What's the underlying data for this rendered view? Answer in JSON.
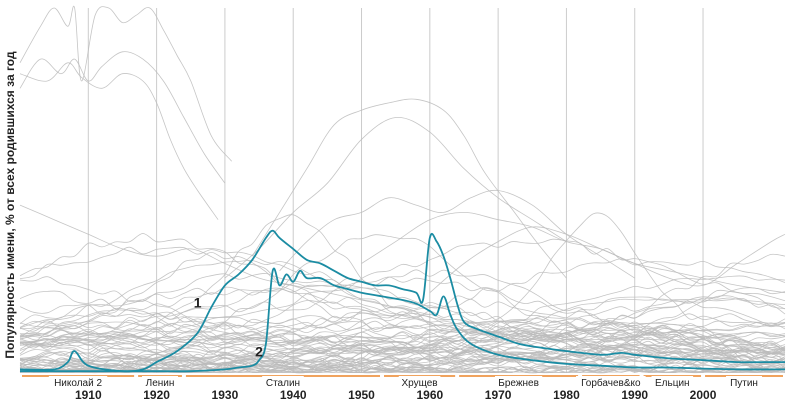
{
  "chart_data": {
    "type": "line",
    "ylabel": "Популярность имени, % от всех родившихся за год",
    "xlim": [
      1900,
      2012
    ],
    "ylim": [
      0,
      10
    ],
    "x_ticks": [
      1910,
      1920,
      1930,
      1940,
      1950,
      1960,
      1970,
      1980,
      1990,
      2000
    ],
    "eras": [
      {
        "label": "Николай 2",
        "start": 1900,
        "end": 1917
      },
      {
        "label": "Ленин",
        "start": 1917,
        "end": 1924
      },
      {
        "label": "Сталин",
        "start": 1924,
        "end": 1953
      },
      {
        "label": "Хрущев",
        "start": 1953,
        "end": 1964
      },
      {
        "label": "Брежнев",
        "start": 1964,
        "end": 1982
      },
      {
        "label": "Горбачев&ко",
        "start": 1982,
        "end": 1991
      },
      {
        "label": "Ельцин",
        "start": 1991,
        "end": 2000
      },
      {
        "label": "Путин",
        "start": 2000,
        "end": 2012
      }
    ],
    "era_bar_color": "#f0a35e",
    "highlight_color": "#1b8ca3",
    "background_color": "#bbbbbb",
    "highlighted_series": [
      {
        "name": "1",
        "label_at": [
          1926,
          1.8
        ],
        "x": [
          1900,
          1905,
          1907,
          1908,
          1910,
          1915,
          1918,
          1920,
          1923,
          1926,
          1928,
          1930,
          1932,
          1934,
          1936,
          1937,
          1938,
          1940,
          1942,
          1944,
          1946,
          1948,
          1950,
          1952,
          1954,
          1956,
          1958,
          1959,
          1960,
          1961,
          1962,
          1963,
          1964,
          1965,
          1967,
          1970,
          1973,
          1976,
          1980,
          1985,
          1988,
          1990,
          1995,
          2000,
          2005,
          2010,
          2012
        ],
        "y": [
          0.1,
          0.1,
          0.3,
          0.6,
          0.2,
          0.05,
          0.1,
          0.3,
          0.6,
          1.1,
          1.8,
          2.4,
          2.7,
          3.1,
          3.7,
          3.9,
          3.7,
          3.4,
          3.1,
          3.0,
          2.8,
          2.6,
          2.5,
          2.4,
          2.4,
          2.3,
          2.2,
          2.0,
          3.7,
          3.6,
          3.2,
          2.6,
          1.9,
          1.4,
          1.2,
          1.0,
          0.8,
          0.7,
          0.6,
          0.5,
          0.55,
          0.5,
          0.4,
          0.35,
          0.3,
          0.3,
          0.3
        ]
      },
      {
        "name": "2",
        "label_at": [
          1935,
          0.45
        ],
        "x": [
          1900,
          1910,
          1920,
          1925,
          1930,
          1932,
          1934,
          1935,
          1936,
          1937,
          1938,
          1939,
          1940,
          1941,
          1942,
          1944,
          1946,
          1948,
          1950,
          1953,
          1956,
          1958,
          1960,
          1961,
          1962,
          1963,
          1964,
          1966,
          1970,
          1975,
          1980,
          1985,
          1990,
          1995,
          2000,
          2005,
          2010,
          2012
        ],
        "y": [
          0.05,
          0.05,
          0.05,
          0.05,
          0.1,
          0.15,
          0.2,
          0.35,
          0.8,
          2.8,
          2.4,
          2.7,
          2.5,
          2.8,
          2.6,
          2.6,
          2.4,
          2.3,
          2.2,
          2.1,
          2.0,
          1.9,
          1.7,
          1.6,
          2.1,
          1.6,
          1.2,
          0.8,
          0.5,
          0.35,
          0.25,
          0.2,
          0.15,
          0.15,
          0.12,
          0.1,
          0.1,
          0.1
        ]
      }
    ],
    "background_peaks": [
      {
        "x": [
          1900,
          1903,
          1905,
          1907,
          1908,
          1909,
          1911,
          1913,
          1915,
          1917,
          1919,
          1921,
          1923,
          1925,
          1928,
          1931
        ],
        "y": [
          8.5,
          9.5,
          10.0,
          9.5,
          10.0,
          8.0,
          9.8,
          10.0,
          9.6,
          9.8,
          10.0,
          9.4,
          8.7,
          8.0,
          6.5,
          5.8
        ]
      },
      {
        "x": [
          1900,
          1903,
          1906,
          1908,
          1910,
          1912,
          1915,
          1918,
          1921,
          1924,
          1927,
          1930
        ],
        "y": [
          7.8,
          8.6,
          8.2,
          8.6,
          8.0,
          8.4,
          8.8,
          8.6,
          8.0,
          7.0,
          6.0,
          5.2
        ]
      },
      {
        "x": [
          1900,
          1904,
          1907,
          1909,
          1912,
          1915,
          1918,
          1920,
          1922,
          1924,
          1926,
          1929
        ],
        "y": [
          8.2,
          8.0,
          8.5,
          8.1,
          7.8,
          8.2,
          8.0,
          7.4,
          6.4,
          5.6,
          5.0,
          4.2
        ]
      },
      {
        "x": [
          1934,
          1938,
          1942,
          1946,
          1950,
          1954,
          1958,
          1962,
          1965,
          1968,
          1972,
          1976,
          1980
        ],
        "y": [
          3.2,
          4.4,
          5.6,
          6.8,
          7.2,
          7.4,
          7.5,
          7.2,
          6.5,
          5.5,
          4.5,
          3.5,
          2.6
        ]
      },
      {
        "x": [
          1930,
          1935,
          1940,
          1945,
          1950,
          1955,
          1960,
          1965,
          1970,
          1975,
          1980
        ],
        "y": [
          2.6,
          3.4,
          4.4,
          5.2,
          6.4,
          7.0,
          6.6,
          5.6,
          4.8,
          4.2,
          3.6
        ]
      },
      {
        "x": [
          1938,
          1942,
          1946,
          1950,
          1954,
          1958,
          1962,
          1966,
          1970,
          1975,
          1980,
          1985,
          1990
        ],
        "y": [
          2.8,
          3.6,
          4.2,
          4.4,
          4.8,
          4.6,
          4.4,
          4.8,
          5.0,
          4.6,
          3.8,
          3.2,
          2.6
        ]
      },
      {
        "x": [
          1950,
          1955,
          1960,
          1965,
          1970,
          1975,
          1980,
          1985,
          1990,
          1995,
          2000,
          2005,
          2012
        ],
        "y": [
          3.0,
          3.6,
          4.2,
          4.4,
          4.2,
          4.0,
          3.6,
          3.4,
          3.0,
          2.8,
          2.6,
          2.4,
          2.2
        ]
      },
      {
        "x": [
          1960,
          1965,
          1970,
          1975,
          1980,
          1985,
          1990,
          1995,
          2000,
          2005,
          2010,
          2012
        ],
        "y": [
          2.2,
          3.0,
          3.6,
          4.0,
          3.8,
          3.4,
          3.0,
          2.6,
          2.4,
          3.0,
          3.6,
          3.8
        ]
      },
      {
        "x": [
          1900,
          1905,
          1910,
          1915,
          1920,
          1925,
          1930,
          1935,
          1940,
          1945,
          1950,
          1955,
          1960
        ],
        "y": [
          4.6,
          4.2,
          3.8,
          3.4,
          3.2,
          3.4,
          3.0,
          2.6,
          2.4,
          2.2,
          2.0,
          1.8,
          1.6
        ]
      }
    ]
  }
}
